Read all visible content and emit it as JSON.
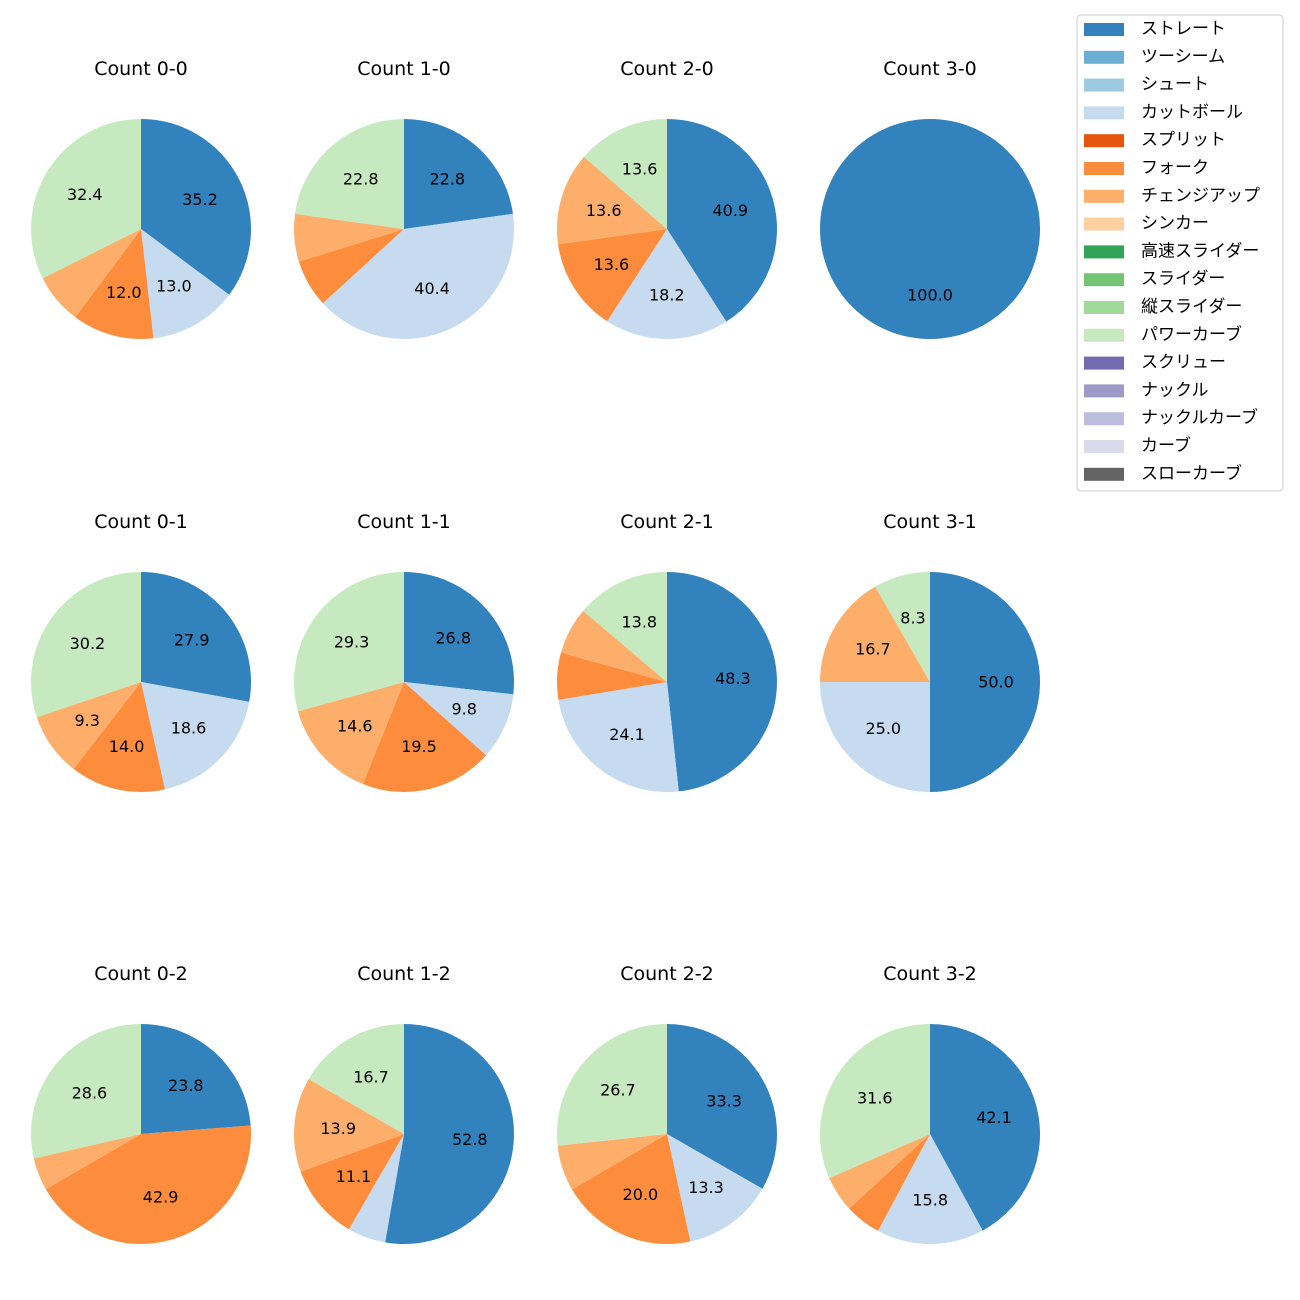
{
  "chart_data": {
    "type": "pie",
    "title": "",
    "legend": {
      "placement": "top-right",
      "entries": [
        {
          "name": "ストレート",
          "color": "#3182bd"
        },
        {
          "name": "ツーシーム",
          "color": "#6baed6"
        },
        {
          "name": "シュート",
          "color": "#9ecae1"
        },
        {
          "name": "カットボール",
          "color": "#c6dbef"
        },
        {
          "name": "スプリット",
          "color": "#e6550d"
        },
        {
          "name": "フォーク",
          "color": "#fd8d3c"
        },
        {
          "name": "チェンジアップ",
          "color": "#fdae6b"
        },
        {
          "name": "シンカー",
          "color": "#fdd0a2"
        },
        {
          "name": "高速スライダー",
          "color": "#31a354"
        },
        {
          "name": "スライダー",
          "color": "#74c476"
        },
        {
          "name": "縦スライダー",
          "color": "#a1d99b"
        },
        {
          "name": "パワーカーブ",
          "color": "#c7e9c0"
        },
        {
          "name": "スクリュー",
          "color": "#756bb1"
        },
        {
          "name": "ナックル",
          "color": "#9e9ac8"
        },
        {
          "name": "ナックルカーブ",
          "color": "#bcbddc"
        },
        {
          "name": "カーブ",
          "color": "#dadaeb"
        },
        {
          "name": "スローカーブ",
          "color": "#636363"
        }
      ]
    },
    "pies": [
      {
        "title": "Count 0-0",
        "slices": [
          {
            "category": "ストレート",
            "value": 35.2,
            "label": "35.2"
          },
          {
            "category": "カットボール",
            "value": 13.0,
            "label": "13.0"
          },
          {
            "category": "フォーク",
            "value": 12.0,
            "label": "12.0"
          },
          {
            "category": "チェンジアップ",
            "value": 7.4,
            "label": ""
          },
          {
            "category": "パワーカーブ",
            "value": 32.4,
            "label": "32.4"
          }
        ]
      },
      {
        "title": "Count 1-0",
        "slices": [
          {
            "category": "ストレート",
            "value": 22.8,
            "label": "22.8"
          },
          {
            "category": "カットボール",
            "value": 40.4,
            "label": "40.4"
          },
          {
            "category": "フォーク",
            "value": 7.0,
            "label": ""
          },
          {
            "category": "チェンジアップ",
            "value": 7.0,
            "label": ""
          },
          {
            "category": "パワーカーブ",
            "value": 22.8,
            "label": "22.8"
          }
        ]
      },
      {
        "title": "Count 2-0",
        "slices": [
          {
            "category": "ストレート",
            "value": 40.9,
            "label": "40.9"
          },
          {
            "category": "カットボール",
            "value": 18.2,
            "label": "18.2"
          },
          {
            "category": "フォーク",
            "value": 13.6,
            "label": "13.6"
          },
          {
            "category": "チェンジアップ",
            "value": 13.6,
            "label": "13.6"
          },
          {
            "category": "パワーカーブ",
            "value": 13.6,
            "label": "13.6"
          }
        ]
      },
      {
        "title": "Count 3-0",
        "slices": [
          {
            "category": "ストレート",
            "value": 100.0,
            "label": "100.0"
          }
        ]
      },
      {
        "title": "Count 0-1",
        "slices": [
          {
            "category": "ストレート",
            "value": 27.9,
            "label": "27.9"
          },
          {
            "category": "カットボール",
            "value": 18.6,
            "label": "18.6"
          },
          {
            "category": "フォーク",
            "value": 14.0,
            "label": "14.0"
          },
          {
            "category": "チェンジアップ",
            "value": 9.3,
            "label": "9.3"
          },
          {
            "category": "パワーカーブ",
            "value": 30.2,
            "label": "30.2"
          }
        ]
      },
      {
        "title": "Count 1-1",
        "slices": [
          {
            "category": "ストレート",
            "value": 26.8,
            "label": "26.8"
          },
          {
            "category": "カットボール",
            "value": 9.8,
            "label": "9.8"
          },
          {
            "category": "フォーク",
            "value": 19.5,
            "label": "19.5"
          },
          {
            "category": "チェンジアップ",
            "value": 14.6,
            "label": "14.6"
          },
          {
            "category": "パワーカーブ",
            "value": 29.3,
            "label": "29.3"
          }
        ]
      },
      {
        "title": "Count 2-1",
        "slices": [
          {
            "category": "ストレート",
            "value": 48.3,
            "label": "48.3"
          },
          {
            "category": "カットボール",
            "value": 24.1,
            "label": "24.1"
          },
          {
            "category": "フォーク",
            "value": 6.9,
            "label": ""
          },
          {
            "category": "チェンジアップ",
            "value": 6.9,
            "label": ""
          },
          {
            "category": "パワーカーブ",
            "value": 13.8,
            "label": "13.8"
          }
        ]
      },
      {
        "title": "Count 3-1",
        "slices": [
          {
            "category": "ストレート",
            "value": 50.0,
            "label": "50.0"
          },
          {
            "category": "カットボール",
            "value": 25.0,
            "label": "25.0"
          },
          {
            "category": "チェンジアップ",
            "value": 16.7,
            "label": "16.7"
          },
          {
            "category": "パワーカーブ",
            "value": 8.3,
            "label": "8.3"
          }
        ]
      },
      {
        "title": "Count 0-2",
        "slices": [
          {
            "category": "ストレート",
            "value": 23.8,
            "label": "23.8"
          },
          {
            "category": "フォーク",
            "value": 42.9,
            "label": "42.9"
          },
          {
            "category": "チェンジアップ",
            "value": 4.8,
            "label": ""
          },
          {
            "category": "パワーカーブ",
            "value": 28.6,
            "label": "28.6"
          }
        ]
      },
      {
        "title": "Count 1-2",
        "slices": [
          {
            "category": "ストレート",
            "value": 52.8,
            "label": "52.8"
          },
          {
            "category": "カットボール",
            "value": 5.6,
            "label": ""
          },
          {
            "category": "フォーク",
            "value": 11.1,
            "label": "11.1"
          },
          {
            "category": "チェンジアップ",
            "value": 13.9,
            "label": "13.9"
          },
          {
            "category": "パワーカーブ",
            "value": 16.7,
            "label": "16.7"
          }
        ]
      },
      {
        "title": "Count 2-2",
        "slices": [
          {
            "category": "ストレート",
            "value": 33.3,
            "label": "33.3"
          },
          {
            "category": "カットボール",
            "value": 13.3,
            "label": "13.3"
          },
          {
            "category": "フォーク",
            "value": 20.0,
            "label": "20.0"
          },
          {
            "category": "チェンジアップ",
            "value": 6.7,
            "label": ""
          },
          {
            "category": "パワーカーブ",
            "value": 26.7,
            "label": "26.7"
          }
        ]
      },
      {
        "title": "Count 3-2",
        "slices": [
          {
            "category": "ストレート",
            "value": 42.1,
            "label": "42.1"
          },
          {
            "category": "カットボール",
            "value": 15.8,
            "label": "15.8"
          },
          {
            "category": "フォーク",
            "value": 5.3,
            "label": ""
          },
          {
            "category": "チェンジアップ",
            "value": 5.3,
            "label": ""
          },
          {
            "category": "パワーカーブ",
            "value": 31.6,
            "label": "31.6"
          }
        ]
      }
    ]
  }
}
